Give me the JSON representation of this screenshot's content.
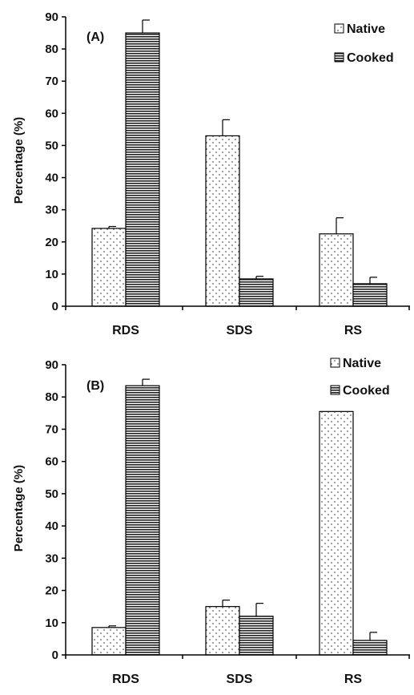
{
  "chart_data": [
    {
      "panel_label": "(A)",
      "type": "bar",
      "ylabel": "Percentage (%)",
      "ylim": [
        0,
        90
      ],
      "yticks": [
        0,
        10,
        20,
        30,
        40,
        50,
        60,
        70,
        80,
        90
      ],
      "categories": [
        "RDS",
        "SDS",
        "RS"
      ],
      "series": [
        {
          "name": "Native",
          "values": [
            24.2,
            53.0,
            22.5
          ],
          "errors": [
            0.6,
            5.0,
            5.0
          ],
          "pattern": "dots"
        },
        {
          "name": "Cooked",
          "values": [
            85.0,
            8.5,
            7.0
          ],
          "errors": [
            4.0,
            0.8,
            2.0
          ],
          "pattern": "horizontal-lines"
        }
      ],
      "legend": "top-right"
    },
    {
      "panel_label": "(B)",
      "type": "bar",
      "ylabel": "Percentage (%)",
      "ylim": [
        0,
        90
      ],
      "yticks": [
        0,
        10,
        20,
        30,
        40,
        50,
        60,
        70,
        80,
        90
      ],
      "categories": [
        "RDS",
        "SDS",
        "RS"
      ],
      "series": [
        {
          "name": "Native",
          "values": [
            8.5,
            15.0,
            75.5
          ],
          "errors": [
            0.5,
            2.0,
            0.0
          ],
          "pattern": "dots"
        },
        {
          "name": "Cooked",
          "values": [
            83.5,
            12.0,
            4.5
          ],
          "errors": [
            2.0,
            4.0,
            2.5
          ],
          "pattern": "horizontal-lines"
        }
      ],
      "legend": "top-right"
    }
  ]
}
